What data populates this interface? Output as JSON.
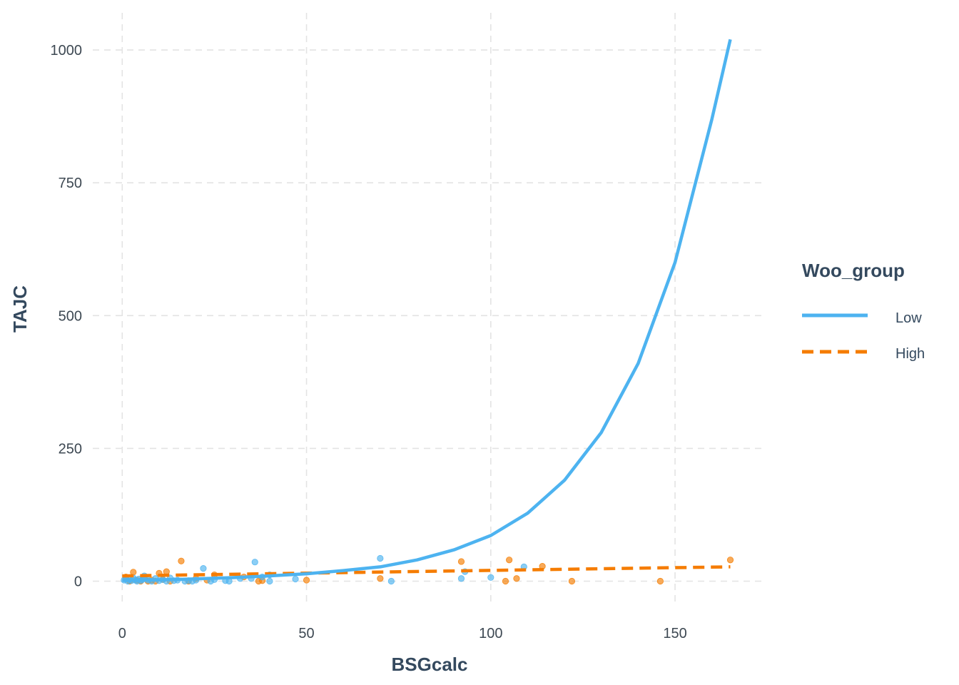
{
  "chart_data": {
    "type": "scatter",
    "xlabel": "BSGcalc",
    "ylabel": "TAJC",
    "xlim": [
      -8,
      174
    ],
    "ylim": [
      -45,
      1070
    ],
    "x_ticks": [
      0,
      50,
      100,
      150
    ],
    "y_ticks": [
      0,
      250,
      500,
      750,
      1000
    ],
    "grid": true,
    "legend": {
      "title": "Woo_group",
      "placement": "right",
      "entries": [
        "Low",
        "High"
      ]
    },
    "series": [
      {
        "name": "Low",
        "color": "#4db3f0",
        "line_style": "solid",
        "points": [
          [
            0.5,
            2
          ],
          [
            1,
            5
          ],
          [
            1.5,
            0
          ],
          [
            2,
            3
          ],
          [
            2.5,
            1
          ],
          [
            3,
            6
          ],
          [
            3.5,
            2
          ],
          [
            4,
            0
          ],
          [
            4.5,
            4
          ],
          [
            5,
            1
          ],
          [
            5.5,
            3
          ],
          [
            6,
            10
          ],
          [
            7,
            2
          ],
          [
            8,
            0
          ],
          [
            9,
            5
          ],
          [
            10,
            1
          ],
          [
            11,
            3
          ],
          [
            12,
            0
          ],
          [
            13,
            6
          ],
          [
            14,
            1
          ],
          [
            15,
            2
          ],
          [
            17,
            0
          ],
          [
            18,
            1
          ],
          [
            19,
            0
          ],
          [
            20,
            2
          ],
          [
            22,
            24
          ],
          [
            24,
            0
          ],
          [
            25,
            3
          ],
          [
            28,
            1
          ],
          [
            29,
            0
          ],
          [
            32,
            5
          ],
          [
            35,
            5
          ],
          [
            36,
            36
          ],
          [
            38,
            8
          ],
          [
            40,
            12
          ],
          [
            40,
            0
          ],
          [
            47,
            4
          ],
          [
            70,
            43
          ],
          [
            73,
            0
          ],
          [
            92,
            5
          ],
          [
            93,
            18
          ],
          [
            100,
            7
          ],
          [
            109,
            27
          ]
        ],
        "fit": [
          [
            0,
            1.3
          ],
          [
            10,
            2.5
          ],
          [
            20,
            4.3
          ],
          [
            30,
            6.7
          ],
          [
            40,
            10
          ],
          [
            50,
            14
          ],
          [
            60,
            20
          ],
          [
            70,
            27
          ],
          [
            80,
            40
          ],
          [
            90,
            59
          ],
          [
            100,
            86
          ],
          [
            110,
            128
          ],
          [
            120,
            190
          ],
          [
            130,
            280
          ],
          [
            140,
            410
          ],
          [
            150,
            600
          ],
          [
            160,
            870
          ],
          [
            165,
            1020
          ]
        ]
      },
      {
        "name": "High",
        "color": "#f57c00",
        "line_style": "dashed",
        "points": [
          [
            1,
            8
          ],
          [
            2,
            0
          ],
          [
            3,
            17
          ],
          [
            4,
            2
          ],
          [
            5,
            0
          ],
          [
            6,
            5
          ],
          [
            7,
            0
          ],
          [
            8,
            2
          ],
          [
            9,
            0
          ],
          [
            10,
            15
          ],
          [
            11,
            3
          ],
          [
            12,
            18
          ],
          [
            13,
            0
          ],
          [
            16,
            38
          ],
          [
            18,
            0
          ],
          [
            20,
            5
          ],
          [
            23,
            2
          ],
          [
            25,
            12
          ],
          [
            33,
            8
          ],
          [
            37,
            0
          ],
          [
            38,
            1
          ],
          [
            50,
            2
          ],
          [
            70,
            5
          ],
          [
            92,
            37
          ],
          [
            104,
            0
          ],
          [
            105,
            40
          ],
          [
            107,
            5
          ],
          [
            114,
            28
          ],
          [
            122,
            0
          ],
          [
            146,
            0
          ],
          [
            165,
            40
          ]
        ],
        "fit": [
          [
            0,
            10
          ],
          [
            165,
            27
          ]
        ]
      }
    ]
  }
}
